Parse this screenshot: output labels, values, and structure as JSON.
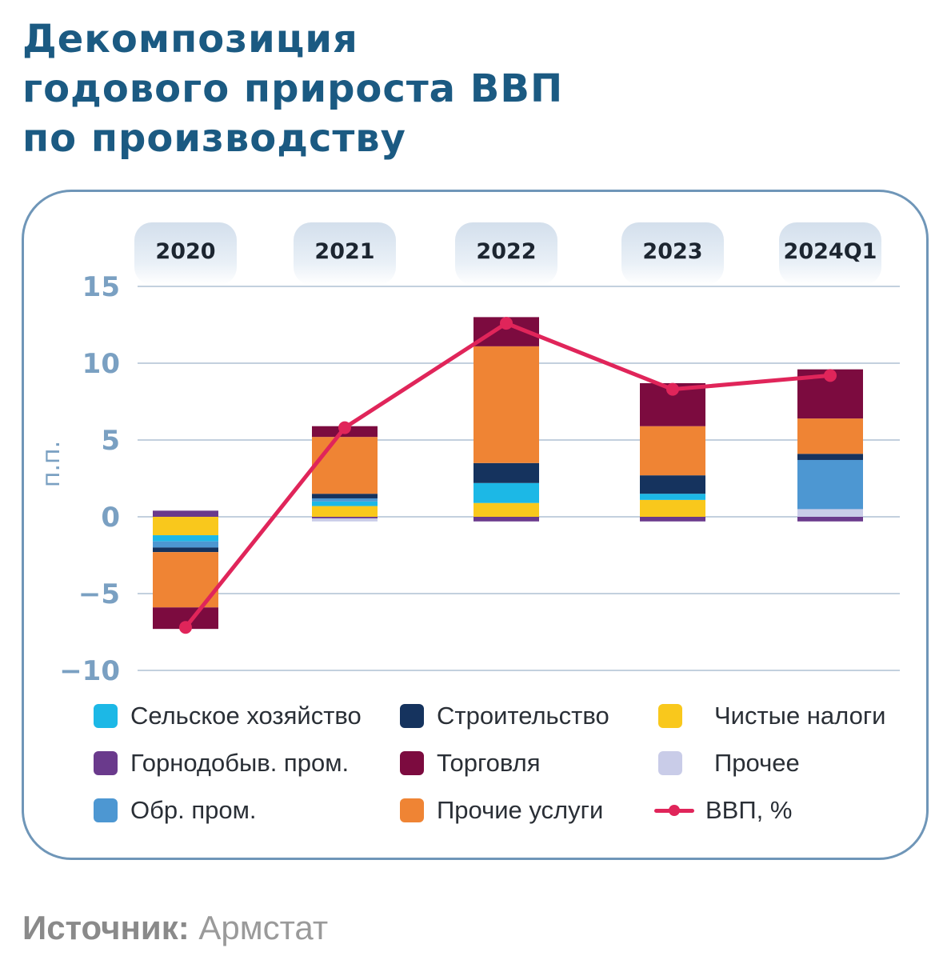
{
  "title_lines": [
    "Декомпозиция",
    "годового прироста ВВП",
    "по производству"
  ],
  "source": {
    "label": "Источник:",
    "value": "Армстат"
  },
  "colors": {
    "agriculture": "#1cb8e6",
    "construction": "#15335e",
    "net_taxes": "#f9c81c",
    "mining": "#6a3a8c",
    "trade": "#7c0b3f",
    "other": "#c9cce8",
    "manufacturing": "#4d97d2",
    "services": "#ef8434",
    "gdp_line": "#e0255a",
    "axis_text": "#7aa0c2",
    "grid": "#9fb4c9",
    "title": "#1b5a82"
  },
  "chart_data": {
    "type": "bar",
    "stacked": true,
    "title": "Декомпозиция годового прироста ВВП по производству",
    "categories": [
      "2020",
      "2021",
      "2022",
      "2023",
      "2024Q1"
    ],
    "ylabel": "п.п.",
    "ylim": [
      -10,
      15
    ],
    "yticks": [
      15,
      10,
      5,
      0,
      -5,
      -10
    ],
    "ytick_labels": [
      "15",
      "10",
      "5",
      "0",
      "−5",
      "−10"
    ],
    "grid": true,
    "legend_position": "bottom",
    "series": [
      {
        "key": "mining",
        "name": "Горнодобыв. пром.",
        "values": [
          0.4,
          -0.1,
          -0.3,
          -0.3,
          -0.3
        ]
      },
      {
        "key": "other",
        "name": "Прочее",
        "values": [
          0.0,
          -0.2,
          0.0,
          0.0,
          0.5
        ]
      },
      {
        "key": "net_taxes",
        "name": "Чистые налоги",
        "values": [
          -1.2,
          0.7,
          0.9,
          1.1,
          0.0
        ]
      },
      {
        "key": "agriculture",
        "name": "Сельское хозяйство",
        "values": [
          -0.4,
          0.3,
          1.3,
          0.4,
          0.0
        ]
      },
      {
        "key": "manufacturing",
        "name": "Обр. пром.",
        "values": [
          -0.4,
          0.2,
          0.0,
          0.0,
          3.2
        ]
      },
      {
        "key": "construction",
        "name": "Строительство",
        "values": [
          -0.3,
          0.3,
          1.3,
          1.2,
          0.4
        ]
      },
      {
        "key": "services",
        "name": "Прочие услуги",
        "values": [
          -3.6,
          3.7,
          7.6,
          3.2,
          2.3
        ]
      },
      {
        "key": "trade",
        "name": "Торговля",
        "values": [
          -1.4,
          0.7,
          1.9,
          2.8,
          3.2
        ]
      }
    ],
    "line": {
      "name": "ВВП, %",
      "values": [
        -7.2,
        5.8,
        12.6,
        8.3,
        9.2
      ]
    }
  },
  "legend": [
    {
      "key": "agriculture",
      "label": "Сельское хозяйство"
    },
    {
      "key": "construction",
      "label": "Строительство"
    },
    {
      "key": "net_taxes",
      "label": "Чистые налоги"
    },
    {
      "key": "mining",
      "label": "Горнодобыв. пром."
    },
    {
      "key": "trade",
      "label": "Торговля"
    },
    {
      "key": "other",
      "label": "Прочее"
    },
    {
      "key": "manufacturing",
      "label": "Обр. пром."
    },
    {
      "key": "services",
      "label": "Прочие услуги"
    },
    {
      "key": "gdp_line",
      "label": "ВВП, %"
    }
  ]
}
